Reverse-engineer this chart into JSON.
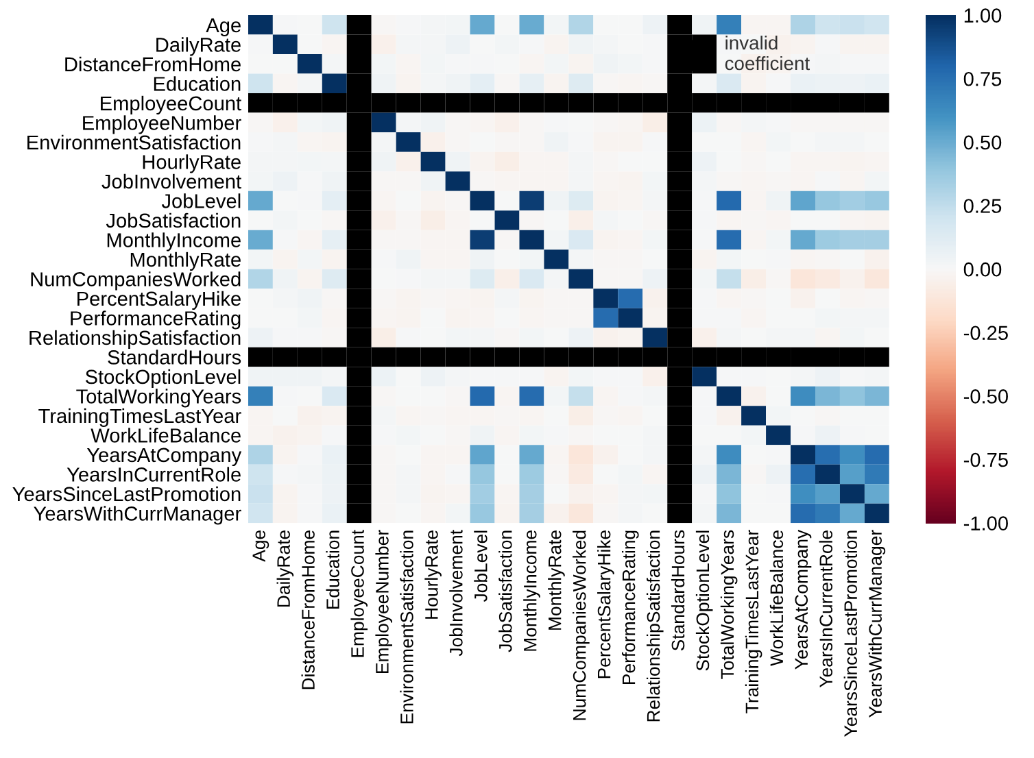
{
  "chart_data": {
    "type": "heatmap",
    "categories": [
      "Age",
      "DailyRate",
      "DistanceFromHome",
      "Education",
      "EmployeeCount",
      "EmployeeNumber",
      "EnvironmentSatisfaction",
      "HourlyRate",
      "JobInvolvement",
      "JobLevel",
      "JobSatisfaction",
      "MonthlyIncome",
      "MonthlyRate",
      "NumCompaniesWorked",
      "PercentSalaryHike",
      "PerformanceRating",
      "RelationshipSatisfaction",
      "StandardHours",
      "StockOptionLevel",
      "TotalWorkingYears",
      "TrainingTimesLastYear",
      "WorkLifeBalance",
      "YearsAtCompany",
      "YearsInCurrentRole",
      "YearsSinceLastPromotion",
      "YearsWithCurrManager"
    ],
    "y_categories": [
      "Age",
      "DailyRate",
      "DistanceFromHome",
      "Education",
      "EmployeeCount",
      "EmployeeNumber",
      "EnvironmentSatisfaction",
      "HourlyRate",
      "JobInvolvement",
      "JobLevel",
      "JobSatisfaction",
      "MonthlyIncome",
      "MonthlyRate",
      "NumCompaniesWorked",
      "PercentSalaryHike",
      "PerformanceRating",
      "RelationshipSatisfaction",
      "StandardHours",
      "StockOptionLevel",
      "TotalWorkingYears",
      "TrainingTimesLastYear",
      "WorkLifeBalance",
      "YearsAtCompany",
      "YearsInCurrentRole",
      "YearsSinceLastPromotion",
      "YearsWithCurrManager"
    ],
    "cells": [
      [
        1,
        0.01,
        0.0,
        0.21,
        null,
        -0.01,
        0.01,
        0.02,
        0.03,
        0.51,
        0.0,
        0.5,
        0.03,
        0.3,
        0.0,
        0.0,
        0.05,
        null,
        0.04,
        0.68,
        -0.02,
        -0.02,
        0.31,
        0.21,
        0.22,
        0.2
      ],
      [
        0.01,
        1,
        0.0,
        -0.02,
        null,
        -0.05,
        0.02,
        0.02,
        0.05,
        0.0,
        0.03,
        0.01,
        -0.03,
        0.04,
        0.02,
        0.0,
        0.01,
        null,
        null,
        0.01,
        0.0,
        -0.04,
        -0.03,
        0.01,
        -0.03,
        -0.03
      ],
      [
        0.0,
        0.0,
        1,
        0.02,
        null,
        0.03,
        -0.02,
        0.03,
        0.01,
        0.01,
        0.0,
        -0.02,
        0.03,
        -0.03,
        0.04,
        0.03,
        0.01,
        null,
        null,
        0.0,
        -0.04,
        -0.03,
        0.01,
        0.02,
        0.01,
        0.01
      ],
      [
        0.21,
        -0.02,
        0.02,
        1,
        null,
        0.04,
        -0.03,
        0.02,
        0.04,
        0.1,
        -0.01,
        0.09,
        -0.03,
        0.13,
        -0.01,
        -0.02,
        -0.01,
        null,
        0.02,
        0.15,
        -0.03,
        0.01,
        0.07,
        0.06,
        0.05,
        0.07
      ],
      [
        null,
        null,
        null,
        null,
        null,
        null,
        null,
        null,
        null,
        null,
        null,
        null,
        null,
        null,
        null,
        null,
        null,
        null,
        null,
        null,
        null,
        null,
        null,
        null,
        null,
        null
      ],
      [
        -0.01,
        -0.05,
        0.03,
        0.04,
        null,
        1,
        0.02,
        0.04,
        -0.01,
        -0.02,
        -0.05,
        -0.01,
        0.01,
        0.0,
        -0.01,
        -0.02,
        -0.07,
        null,
        0.06,
        -0.01,
        0.02,
        0.01,
        -0.01,
        -0.01,
        -0.01,
        -0.01
      ],
      [
        0.01,
        0.02,
        -0.02,
        -0.03,
        null,
        0.02,
        1,
        -0.05,
        -0.01,
        0.0,
        -0.01,
        -0.01,
        0.04,
        0.01,
        -0.03,
        -0.03,
        0.01,
        null,
        0.0,
        0.0,
        -0.02,
        0.03,
        0.0,
        0.02,
        0.02,
        0.0
      ],
      [
        0.02,
        0.02,
        0.03,
        0.02,
        null,
        0.04,
        -0.05,
        1,
        0.04,
        -0.03,
        -0.07,
        -0.02,
        -0.02,
        0.02,
        -0.01,
        0.0,
        0.0,
        null,
        0.05,
        0.0,
        -0.01,
        0.0,
        -0.02,
        -0.02,
        -0.03,
        -0.02
      ],
      [
        0.03,
        0.05,
        0.01,
        0.04,
        null,
        -0.01,
        -0.01,
        0.04,
        1,
        -0.01,
        -0.02,
        -0.02,
        -0.02,
        0.02,
        -0.02,
        -0.03,
        0.03,
        null,
        0.02,
        -0.01,
        -0.02,
        -0.01,
        -0.02,
        0.01,
        -0.02,
        0.03
      ],
      [
        0.51,
        0.0,
        0.01,
        0.1,
        null,
        -0.02,
        0.0,
        -0.03,
        -0.01,
        1,
        0.0,
        0.95,
        0.04,
        0.14,
        -0.03,
        -0.02,
        0.02,
        null,
        0.01,
        0.78,
        -0.02,
        0.04,
        0.53,
        0.39,
        0.35,
        0.38
      ],
      [
        0.0,
        0.03,
        0.0,
        -0.01,
        null,
        -0.05,
        -0.01,
        -0.07,
        -0.02,
        0.0,
        1,
        -0.01,
        0.0,
        -0.06,
        0.02,
        0.0,
        -0.01,
        null,
        0.01,
        -0.02,
        -0.01,
        -0.02,
        0.0,
        0.0,
        -0.02,
        -0.03
      ],
      [
        0.5,
        0.01,
        -0.02,
        0.09,
        null,
        -0.01,
        -0.01,
        -0.02,
        -0.02,
        0.95,
        -0.01,
        1,
        0.03,
        0.15,
        -0.03,
        -0.02,
        0.03,
        null,
        0.01,
        0.77,
        -0.02,
        0.03,
        0.51,
        0.36,
        0.34,
        0.34
      ],
      [
        0.03,
        -0.03,
        0.03,
        -0.03,
        null,
        0.01,
        0.04,
        -0.02,
        -0.02,
        0.04,
        0.0,
        0.03,
        1,
        0.02,
        -0.01,
        -0.01,
        0.0,
        null,
        -0.03,
        0.03,
        0.0,
        0.01,
        -0.02,
        -0.01,
        0.0,
        -0.04
      ],
      [
        0.3,
        0.04,
        -0.03,
        0.13,
        null,
        0.0,
        0.01,
        0.02,
        0.02,
        0.14,
        -0.06,
        0.15,
        0.02,
        1,
        -0.01,
        -0.01,
        0.05,
        null,
        0.03,
        0.24,
        -0.07,
        -0.01,
        -0.12,
        -0.09,
        -0.04,
        -0.11
      ],
      [
        0.0,
        0.02,
        0.04,
        -0.01,
        null,
        -0.01,
        -0.03,
        -0.01,
        -0.02,
        -0.03,
        0.02,
        -0.03,
        -0.01,
        -0.01,
        1,
        0.77,
        -0.04,
        null,
        0.01,
        -0.02,
        -0.01,
        0.0,
        -0.04,
        0.0,
        -0.02,
        -0.01
      ],
      [
        0.0,
        0.0,
        0.03,
        -0.02,
        null,
        -0.02,
        -0.03,
        0.0,
        -0.03,
        -0.02,
        0.0,
        -0.02,
        -0.01,
        -0.01,
        0.77,
        1,
        -0.03,
        null,
        0.01,
        0.01,
        -0.02,
        0.0,
        0.0,
        0.03,
        0.02,
        0.02
      ],
      [
        0.05,
        0.01,
        0.01,
        -0.01,
        null,
        -0.07,
        0.01,
        0.0,
        0.03,
        0.02,
        -0.01,
        0.03,
        0.0,
        0.05,
        -0.04,
        -0.03,
        1,
        null,
        -0.05,
        0.02,
        0.0,
        0.02,
        0.02,
        -0.02,
        0.03,
        0.0
      ],
      [
        null,
        null,
        null,
        null,
        null,
        null,
        null,
        null,
        null,
        null,
        null,
        null,
        null,
        null,
        null,
        null,
        null,
        null,
        null,
        null,
        null,
        null,
        null,
        null,
        null,
        null
      ],
      [
        0.04,
        0.04,
        0.04,
        0.02,
        null,
        0.06,
        0.0,
        0.05,
        0.02,
        0.01,
        0.01,
        0.01,
        -0.03,
        0.03,
        0.01,
        0.01,
        -0.05,
        null,
        1,
        0.01,
        0.01,
        0.0,
        0.02,
        0.05,
        0.01,
        0.02
      ],
      [
        0.68,
        0.01,
        0.0,
        0.15,
        null,
        -0.01,
        0.0,
        0.0,
        -0.01,
        0.78,
        -0.02,
        0.77,
        0.03,
        0.24,
        -0.02,
        0.01,
        0.02,
        null,
        0.01,
        1,
        -0.04,
        0.0,
        0.63,
        0.46,
        0.4,
        0.46
      ],
      [
        -0.02,
        0.0,
        -0.04,
        -0.03,
        null,
        0.02,
        -0.02,
        -0.01,
        -0.02,
        -0.02,
        -0.01,
        -0.02,
        0.0,
        -0.07,
        -0.01,
        -0.02,
        0.0,
        null,
        0.01,
        -0.04,
        1,
        0.03,
        0.0,
        -0.01,
        0.0,
        0.0
      ],
      [
        -0.02,
        -0.04,
        -0.03,
        0.01,
        null,
        0.01,
        0.03,
        0.0,
        -0.01,
        0.04,
        -0.02,
        0.03,
        0.01,
        -0.01,
        0.0,
        0.0,
        0.02,
        null,
        0.0,
        0.0,
        0.03,
        1,
        0.01,
        0.05,
        0.01,
        0.0
      ],
      [
        0.31,
        -0.03,
        0.01,
        0.07,
        null,
        -0.01,
        0.0,
        -0.02,
        -0.02,
        0.53,
        0.0,
        0.51,
        -0.02,
        -0.12,
        -0.04,
        0.0,
        0.02,
        null,
        0.02,
        0.63,
        0.0,
        0.01,
        1,
        0.76,
        0.62,
        0.77
      ],
      [
        0.21,
        0.01,
        0.02,
        0.06,
        null,
        -0.01,
        0.02,
        -0.02,
        0.01,
        0.39,
        0.0,
        0.36,
        -0.01,
        -0.09,
        0.0,
        0.03,
        -0.02,
        null,
        0.05,
        0.46,
        -0.01,
        0.05,
        0.76,
        1,
        0.55,
        0.71
      ],
      [
        0.22,
        -0.03,
        0.01,
        0.05,
        null,
        -0.01,
        0.02,
        -0.03,
        -0.02,
        0.35,
        -0.02,
        0.34,
        0.0,
        -0.04,
        -0.02,
        0.02,
        0.03,
        null,
        0.01,
        0.4,
        0.0,
        0.01,
        0.62,
        0.55,
        1,
        0.51
      ],
      [
        0.2,
        -0.03,
        0.01,
        0.07,
        null,
        -0.01,
        0.0,
        -0.02,
        0.03,
        0.38,
        -0.03,
        0.34,
        -0.04,
        -0.11,
        -0.01,
        0.02,
        0.0,
        null,
        0.02,
        0.46,
        0.0,
        0.0,
        0.77,
        0.71,
        0.51,
        1
      ]
    ],
    "clim": [
      -1,
      1
    ],
    "cticks": [
      {
        "value": -1,
        "label": "-1.00"
      },
      {
        "value": -0.75,
        "label": "-0.75"
      },
      {
        "value": -0.5,
        "label": "-0.50"
      },
      {
        "value": -0.25,
        "label": "-0.25"
      },
      {
        "value": 0,
        "label": "0.00"
      },
      {
        "value": 0.25,
        "label": "0.25"
      },
      {
        "value": 0.5,
        "label": "0.50"
      },
      {
        "value": 0.75,
        "label": "0.75"
      },
      {
        "value": 1,
        "label": "1.00"
      }
    ],
    "annotations": [
      "invalid coefficient"
    ]
  }
}
